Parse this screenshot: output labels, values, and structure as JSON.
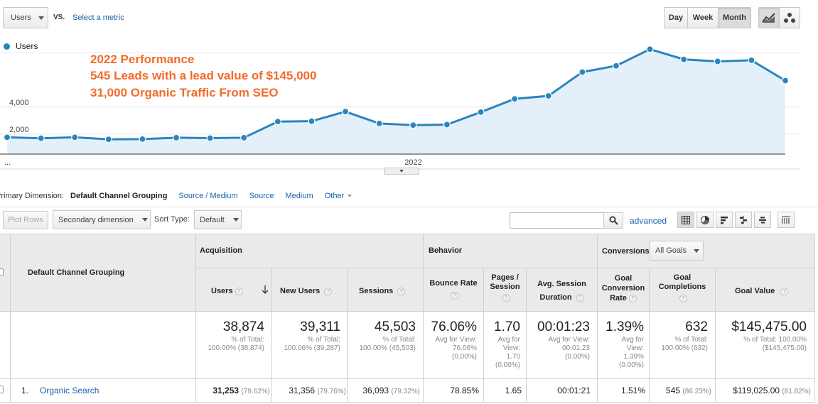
{
  "metric_bar": {
    "metric_select": "Users",
    "vs_label": "VS.",
    "select_metric_link": "Select a metric"
  },
  "period_toggle": {
    "day": "Day",
    "week": "Week",
    "month": "Month",
    "active": "Month"
  },
  "view_toggle": {
    "line_icon": "line-chart-icon",
    "motion_icon": "motion-chart-icon"
  },
  "legend": {
    "series": "Users",
    "color": "#2a84c0"
  },
  "annotation": {
    "line1": "2022 Performance",
    "line2": "545 Leads with a lead value of $145,000",
    "line3": "31,000 Organic Traffic From SEO",
    "color": "#f26b2b"
  },
  "chart_data": {
    "type": "area",
    "x": [
      "2021-01",
      "2021-02",
      "2021-03",
      "2021-04",
      "2021-05",
      "2021-06",
      "2021-07",
      "2021-08",
      "2021-09",
      "2021-10",
      "2021-11",
      "2021-12",
      "2022-01",
      "2022-02",
      "2022-03",
      "2022-04",
      "2022-05",
      "2022-06",
      "2022-07",
      "2022-08",
      "2022-09",
      "2022-10",
      "2022-11",
      "2022-12"
    ],
    "series": [
      {
        "name": "Users",
        "values": [
          1240,
          1170,
          1240,
          1090,
          1110,
          1210,
          1180,
          1210,
          2400,
          2430,
          3140,
          2260,
          2140,
          2180,
          3100,
          4080,
          4300,
          6060,
          6520,
          7750,
          7000,
          6850,
          6930,
          5430
        ]
      }
    ],
    "y_tick_labels": [
      "4,000",
      "2,000"
    ],
    "x_tick_labels": [
      "...",
      "2022"
    ],
    "ylim": [
      0,
      8500
    ],
    "grid": true,
    "color": "#2a84c0"
  },
  "dimension_bar": {
    "label": "Primary Dimension:",
    "active": "Default Channel Grouping",
    "options": [
      "Source / Medium",
      "Source",
      "Medium",
      "Other"
    ]
  },
  "toolbar": {
    "plot_rows": "Plot Rows",
    "secondary_dimension": "Secondary dimension",
    "sort_type_label": "Sort Type:",
    "sort_type_value": "Default",
    "search_value": "",
    "advanced": "advanced",
    "view_icons": [
      "table-view-icon",
      "pie-view-icon",
      "performance-view-icon",
      "comparison-view-icon",
      "term-cloud-icon",
      "pivot-view-icon"
    ]
  },
  "table": {
    "dimension_header": "Default Channel Grouping",
    "groups": {
      "acquisition": "Acquisition",
      "behavior": "Behavior",
      "conversions": "Conversions",
      "goal_select": "All Goals"
    },
    "columns": {
      "users": "Users",
      "new_users": "New Users",
      "sessions": "Sessions",
      "bounce_rate": "Bounce Rate",
      "pages_session_1": "Pages /",
      "pages_session_2": "Session",
      "avg_session_1": "Avg. Session",
      "avg_session_2": "Duration",
      "goal_conv_1": "Goal",
      "goal_conv_2": "Conversion",
      "goal_conv_3": "Rate",
      "goal_comp_1": "Goal",
      "goal_comp_2": "Completions",
      "goal_value": "Goal Value"
    },
    "totals": {
      "users": "38,874",
      "users_sub1": "% of Total:",
      "users_sub2": "100.00% (38,874)",
      "new_users": "39,311",
      "new_users_sub1": "% of Total:",
      "new_users_sub2": "100.06% (39,287)",
      "sessions": "45,503",
      "sessions_sub1": "% of Total:",
      "sessions_sub2": "100.00% (45,503)",
      "bounce_rate": "76.06%",
      "bounce_sub1": "Avg for View:",
      "bounce_sub2": "76.06%",
      "bounce_sub3": "(0.00%)",
      "pages": "1.70",
      "pages_sub1": "Avg for",
      "pages_sub2": "View:",
      "pages_sub3": "1.70",
      "pages_sub4": "(0.00%)",
      "duration": "00:01:23",
      "duration_sub1": "Avg for View:",
      "duration_sub2": "00:01:23",
      "duration_sub3": "(0.00%)",
      "conv_rate": "1.39%",
      "conv_sub1": "Avg for",
      "conv_sub2": "View:",
      "conv_sub3": "1.39%",
      "conv_sub4": "(0.00%)",
      "completions": "632",
      "completions_sub1": "% of Total:",
      "completions_sub2": "100.00% (632)",
      "goal_value": "$145,475.00",
      "goal_value_sub1": "% of Total: 100.00%",
      "goal_value_sub2": "($145,475.00)"
    },
    "rows": [
      {
        "index": "1.",
        "name": "Organic Search",
        "users": "31,253",
        "users_pct": "(79.62%)",
        "new_users": "31,356",
        "new_users_pct": "(79.76%)",
        "sessions": "36,093",
        "sessions_pct": "(79.32%)",
        "bounce_rate": "78.85%",
        "pages": "1.65",
        "duration": "00:01:21",
        "conv_rate": "1.51%",
        "completions": "545",
        "completions_pct": "(86.23%)",
        "goal_value": "$119,025.00",
        "goal_value_pct": "(81.82%)"
      }
    ]
  }
}
